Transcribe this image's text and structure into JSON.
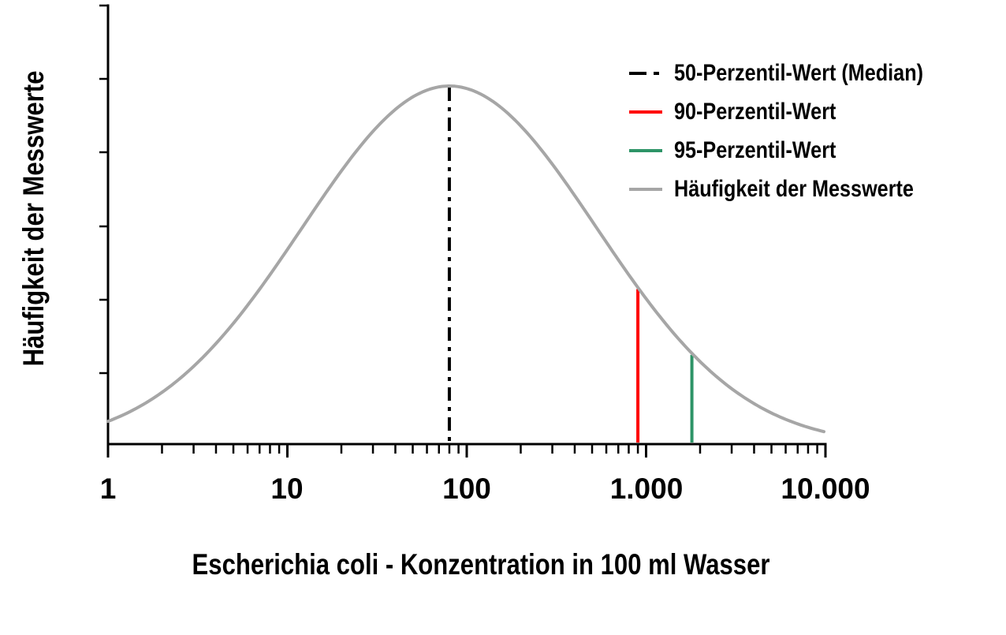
{
  "figure": {
    "background": "#ffffff",
    "axis_color": "#000000",
    "text_color": "#000000"
  },
  "legend": {
    "position": "top-right",
    "items": [
      {
        "label": "50-Perzentil-Wert (Median)",
        "color": "#000000",
        "line_style": "dash-dot"
      },
      {
        "label": "90-Perzentil-Wert",
        "color": "#ff0000",
        "line_style": "solid"
      },
      {
        "label": "95-Perzentil-Wert",
        "color": "#2e9467",
        "line_style": "solid"
      },
      {
        "label": "Häufigkeit der Messwerte",
        "color": "#a6a6a6",
        "line_style": "solid"
      }
    ]
  },
  "chart_data": {
    "type": "line",
    "title": "",
    "xlabel": "Escherichia coli - Konzentration in 100 ml Wasser",
    "ylabel": "Häufigkeit der Messwerte",
    "x_scale": "log10",
    "xlim": [
      1,
      10000
    ],
    "x_ticks": [
      {
        "value": 1,
        "label": "1"
      },
      {
        "value": 10,
        "label": "10"
      },
      {
        "value": 100,
        "label": "100"
      },
      {
        "value": 1000,
        "label": "1.000"
      },
      {
        "value": 10000,
        "label": "10.000"
      }
    ],
    "x_minor_ticks": "2-9 of each decade",
    "y_axis": {
      "ticks_labeled": false,
      "unlabeled_tick_count": 6
    },
    "grid": false,
    "curve": {
      "name": "Häufigkeit der Messwerte",
      "shape": "lognormal-frequency",
      "median": 80,
      "sigma_decades": 0.82,
      "peak_relative_height": 1.0,
      "color": "#a6a6a6"
    },
    "markers": [
      {
        "name": "50-Perzentil-Wert (Median)",
        "value": 80,
        "color": "#000000",
        "line_style": "dash-dot"
      },
      {
        "name": "90-Perzentil-Wert",
        "value": 900,
        "color": "#ff0000",
        "line_style": "solid"
      },
      {
        "name": "95-Perzentil-Wert",
        "value": 1800,
        "color": "#2e9467",
        "line_style": "solid"
      }
    ]
  }
}
